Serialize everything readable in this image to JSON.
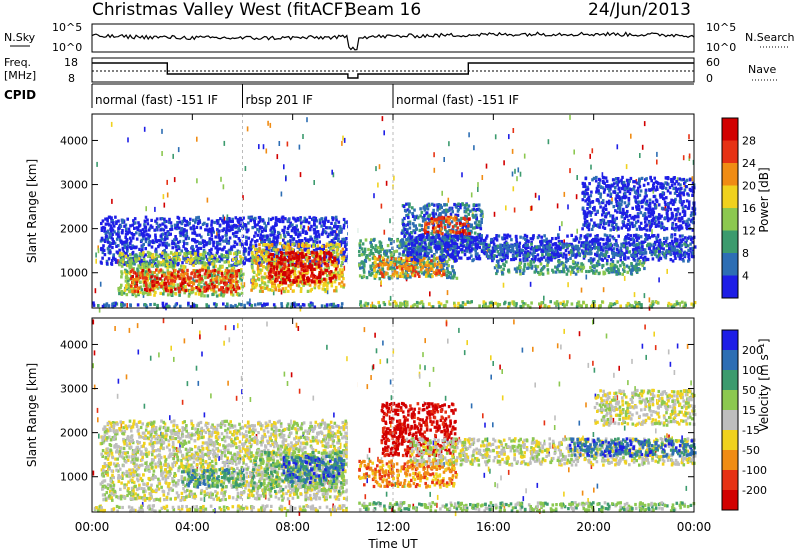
{
  "header": {
    "title": "Christmas Valley West (fitACF)",
    "beam": "Beam 16",
    "date": "24/Jun/2013"
  },
  "sky_panel": {
    "left_label": "N.Sky",
    "right_label": "N.Search",
    "ticks": [
      "10^5",
      "10^0"
    ]
  },
  "freq_panel": {
    "left_label_1": "Freq.",
    "left_label_2": "[MHz]",
    "left_ticks": [
      "18",
      "8"
    ],
    "right_label": "Nave",
    "right_ticks": [
      "60",
      "0"
    ]
  },
  "cpid": {
    "label": "CPID",
    "segments": [
      {
        "name": "normal (fast) -151 IF",
        "start": 0.0
      },
      {
        "name": "rbsp 201 IF",
        "start": 6.0
      },
      {
        "name": "normal (fast) -151 IF",
        "start": 12.0
      }
    ]
  },
  "x_axis": {
    "label": "Time UT",
    "ticks": [
      "00:00",
      "04:00",
      "08:00",
      "12:00",
      "16:00",
      "20:00",
      "00:00"
    ]
  },
  "chart_data": [
    {
      "type": "heatmap",
      "name": "power",
      "ylabel": "Slant Range [km]",
      "y_ticks": [
        1000,
        2000,
        3000,
        4000
      ],
      "ylim": [
        200,
        4600
      ],
      "xlim": [
        0,
        24
      ],
      "colorbar": {
        "label": "Power [dB]",
        "ticks": [
          "4",
          "8",
          "12",
          "16",
          "20",
          "24",
          "28"
        ],
        "colors": [
          "#1e1ee6",
          "#2d6eb4",
          "#3c9b6e",
          "#8cc850",
          "#f0d21e",
          "#f08c14",
          "#e63214",
          "#d20000"
        ]
      },
      "regions": [
        {
          "t0": 0.0,
          "t1": 10.2,
          "r0": 250,
          "r1": 350,
          "level": 1
        },
        {
          "t0": 10.6,
          "t1": 24.0,
          "r0": 250,
          "r1": 380,
          "level": 3
        },
        {
          "t0": 0.3,
          "t1": 10.2,
          "r0": 1200,
          "r1": 2300,
          "level": 0
        },
        {
          "t0": 1.0,
          "t1": 6.0,
          "r0": 500,
          "r1": 1500,
          "level": 3
        },
        {
          "t0": 1.5,
          "t1": 5.8,
          "r0": 600,
          "r1": 1100,
          "level": 6
        },
        {
          "t0": 6.3,
          "t1": 10.0,
          "r0": 600,
          "r1": 1700,
          "level": 4
        },
        {
          "t0": 7.0,
          "t1": 9.7,
          "r0": 800,
          "r1": 1500,
          "level": 7
        },
        {
          "t0": 10.6,
          "t1": 14.5,
          "r0": 900,
          "r1": 1800,
          "level": 2
        },
        {
          "t0": 11.2,
          "t1": 14.0,
          "r0": 950,
          "r1": 1400,
          "level": 5
        },
        {
          "t0": 12.3,
          "t1": 15.5,
          "r0": 1500,
          "r1": 2600,
          "level": 1
        },
        {
          "t0": 13.2,
          "t1": 15.0,
          "r0": 1900,
          "r1": 2300,
          "level": 6
        },
        {
          "t0": 12.5,
          "t1": 24.0,
          "r0": 1300,
          "r1": 1900,
          "level": 0
        },
        {
          "t0": 15.5,
          "t1": 24.0,
          "r0": 1400,
          "r1": 1700,
          "level": 1
        },
        {
          "t0": 16.0,
          "t1": 22.0,
          "r0": 1000,
          "r1": 1300,
          "level": 2
        },
        {
          "t0": 19.5,
          "t1": 24.0,
          "r0": 2000,
          "r1": 3200,
          "level": 0
        }
      ]
    },
    {
      "type": "heatmap",
      "name": "velocity",
      "ylabel": "Slant Range [km]",
      "y_ticks": [
        1000,
        2000,
        3000,
        4000
      ],
      "ylim": [
        200,
        4600
      ],
      "xlim": [
        0,
        24
      ],
      "colorbar": {
        "label": "Velocity [m s⁻¹]",
        "ticks": [
          "200",
          "100",
          "50",
          "15",
          "-15",
          "-50",
          "-100",
          "-200"
        ],
        "colors": [
          "#1e1ee6",
          "#2d6eb4",
          "#3c9b6e",
          "#8cc850",
          "#bebebe",
          "#f0d21e",
          "#f08c14",
          "#e63214",
          "#d20000"
        ]
      },
      "regions": [
        {
          "t0": 0.0,
          "t1": 10.2,
          "r0": 250,
          "r1": 380,
          "level": 4
        },
        {
          "t0": 10.6,
          "t1": 24.0,
          "r0": 250,
          "r1": 450,
          "level": 5
        },
        {
          "t0": 0.3,
          "t1": 10.2,
          "r0": 500,
          "r1": 2300,
          "level": 4
        },
        {
          "t0": 3.5,
          "t1": 6.0,
          "r0": 800,
          "r1": 1200,
          "level": 6
        },
        {
          "t0": 6.3,
          "t1": 10.0,
          "r0": 700,
          "r1": 1600,
          "level": 5
        },
        {
          "t0": 7.5,
          "t1": 10.0,
          "r0": 900,
          "r1": 1500,
          "level": 7
        },
        {
          "t0": 10.6,
          "t1": 14.5,
          "r0": 800,
          "r1": 1400,
          "level": 2
        },
        {
          "t0": 11.5,
          "t1": 14.5,
          "r0": 1500,
          "r1": 2700,
          "level": 0
        },
        {
          "t0": 12.5,
          "t1": 24.0,
          "r0": 1300,
          "r1": 1900,
          "level": 4
        },
        {
          "t0": 19.0,
          "t1": 24.0,
          "r0": 1500,
          "r1": 1900,
          "level": 7
        },
        {
          "t0": 20.0,
          "t1": 24.0,
          "r0": 2200,
          "r1": 3000,
          "level": 4
        }
      ]
    }
  ]
}
